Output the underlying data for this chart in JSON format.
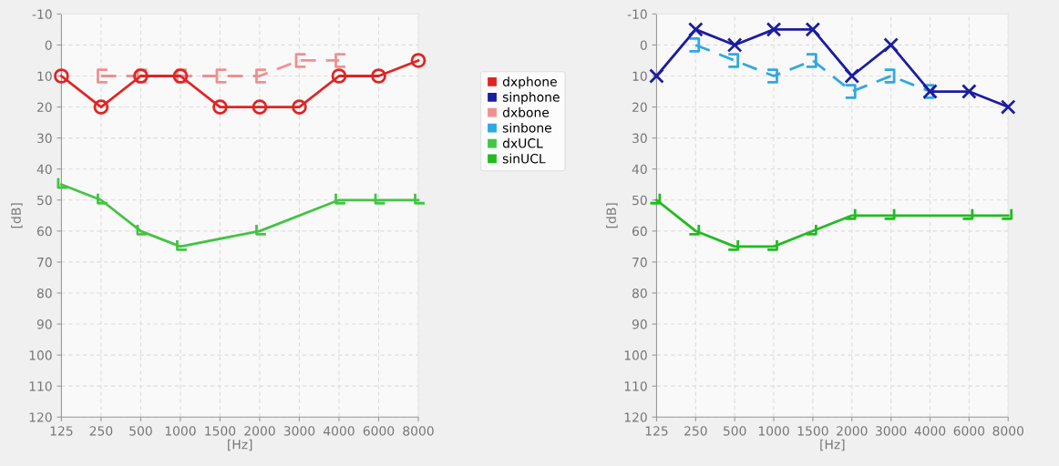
{
  "chart_data": [
    {
      "type": "line",
      "xlabel": "[Hz]",
      "ylabel": "[dB]",
      "categories": [
        "125",
        "250",
        "500",
        "1000",
        "1500",
        "2000",
        "3000",
        "4000",
        "6000",
        "8000"
      ],
      "ylim": [
        120,
        -10
      ],
      "yticks": [
        -10,
        0,
        10,
        20,
        30,
        40,
        50,
        60,
        70,
        80,
        90,
        100,
        110,
        120
      ],
      "grid": true,
      "legend": "right",
      "series": [
        {
          "name": "dxphone",
          "color": "#e02424",
          "marker": "circle",
          "line_style": "solid",
          "values": [
            10,
            20,
            10,
            10,
            20,
            20,
            20,
            10,
            10,
            5
          ]
        },
        {
          "name": "dxbone",
          "color": "#f09090",
          "marker": "cross",
          "line_style": "dashed",
          "values": [
            null,
            10,
            10,
            10,
            10,
            10,
            5,
            5,
            null,
            null
          ]
        },
        {
          "name": "dxUCL",
          "color": "#44c444",
          "marker": "cross",
          "line_style": "solid",
          "values": [
            45,
            50,
            60,
            65,
            null,
            60,
            null,
            50,
            50,
            50
          ]
        }
      ]
    },
    {
      "type": "line",
      "xlabel": "[Hz]",
      "ylabel": "[dB]",
      "categories": [
        "125",
        "250",
        "500",
        "1000",
        "1500",
        "2000",
        "3000",
        "4000",
        "6000",
        "8000"
      ],
      "ylim": [
        120,
        -10
      ],
      "yticks": [
        -10,
        0,
        10,
        20,
        30,
        40,
        50,
        60,
        70,
        80,
        90,
        100,
        110,
        120
      ],
      "grid": true,
      "legend": "left",
      "series": [
        {
          "name": "sinphone",
          "color": "#1c1ca0",
          "marker": "cross",
          "line_style": "solid",
          "values": [
            10,
            -5,
            0,
            -5,
            -5,
            10,
            0,
            15,
            15,
            20
          ]
        },
        {
          "name": "sinbone",
          "color": "#30a8e0",
          "marker": "cross",
          "line_style": "dashed",
          "values": [
            null,
            0,
            5,
            10,
            5,
            15,
            10,
            15,
            null,
            null
          ]
        },
        {
          "name": "sinUCL",
          "color": "#22bb22",
          "marker": "cross",
          "line_style": "solid",
          "values": [
            50,
            60,
            65,
            65,
            60,
            55,
            55,
            null,
            55,
            55
          ]
        }
      ]
    }
  ]
}
